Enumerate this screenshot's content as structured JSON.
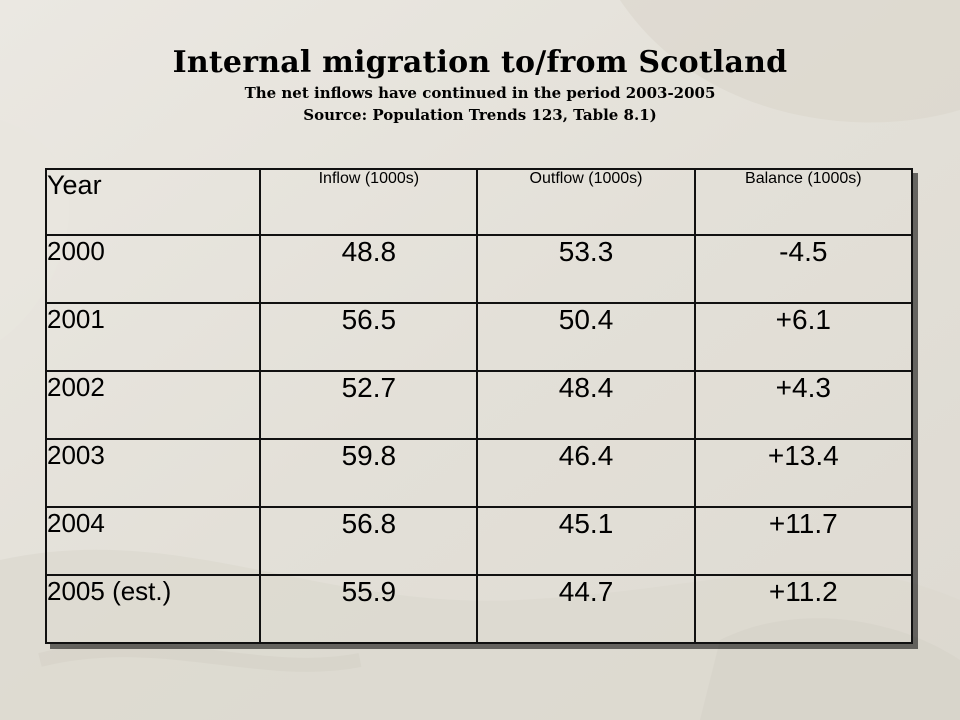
{
  "header": {
    "title": "Internal migration to/from Scotland",
    "subtitle_1": "The net inflows have continued in the period 2003-2005",
    "subtitle_2": "Source: Population Trends 123, Table 8.1)"
  },
  "table": {
    "columns": [
      "Year",
      "Inflow (1000s)",
      "Outflow (1000s)",
      "Balance (1000s)"
    ],
    "rows": [
      [
        "2000",
        "48.8",
        "53.3",
        "-4.5"
      ],
      [
        "2001",
        "56.5",
        "50.4",
        "+6.1"
      ],
      [
        "2002",
        "52.7",
        "48.4",
        "+4.3"
      ],
      [
        "2003",
        "59.8",
        "46.4",
        "+13.4"
      ],
      [
        "2004",
        "56.8",
        "45.1",
        "+11.7"
      ],
      [
        "2005 (est.)",
        "55.9",
        "44.7",
        "+11.2"
      ]
    ]
  },
  "colors": {
    "background": "#e6e3dc",
    "border": "#111111",
    "text": "#000000"
  }
}
